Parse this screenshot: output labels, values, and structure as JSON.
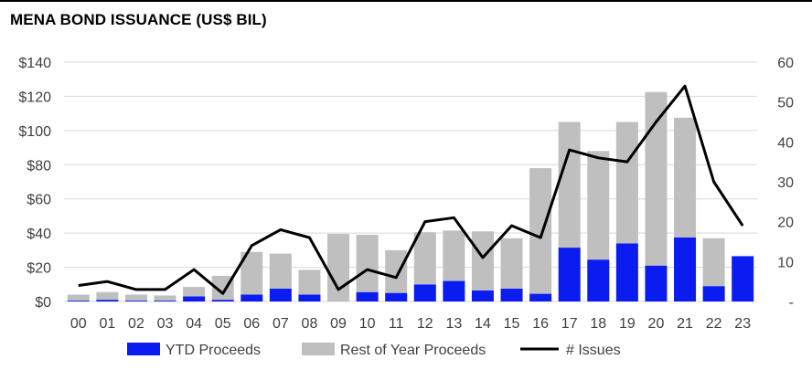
{
  "title": "MENA BOND ISSUANCE (US$ BIL)",
  "chart_data": {
    "type": "bar",
    "stacked": true,
    "categories": [
      "00",
      "01",
      "02",
      "03",
      "04",
      "05",
      "06",
      "07",
      "08",
      "09",
      "10",
      "11",
      "12",
      "13",
      "14",
      "15",
      "16",
      "17",
      "18",
      "19",
      "20",
      "21",
      "22",
      "23"
    ],
    "series": [
      {
        "name": "YTD Proceeds",
        "kind": "bar",
        "axis": "left",
        "color": "#0a1cf0",
        "values": [
          0.5,
          1,
          0.5,
          0.5,
          3,
          1,
          4,
          7.5,
          4,
          0,
          5.5,
          5,
          10,
          12,
          6.5,
          7.5,
          4.5,
          31.5,
          24.5,
          34,
          21,
          37.5,
          9,
          26.5
        ]
      },
      {
        "name": "Rest of Year Proceeds",
        "kind": "bar",
        "axis": "left",
        "color": "#bfbfbf",
        "values": [
          3.5,
          4.5,
          3.5,
          3,
          5.5,
          14,
          25,
          20.5,
          14.5,
          39.5,
          33.5,
          25,
          30.5,
          29.5,
          34.5,
          29.5,
          73.5,
          73.5,
          63.5,
          71,
          101.5,
          70,
          28,
          0
        ]
      },
      {
        "name": "# Issues",
        "kind": "line",
        "axis": "right",
        "color": "#000000",
        "values": [
          4,
          5,
          3,
          3,
          8,
          2,
          14,
          18,
          16,
          3,
          8,
          6,
          20,
          21,
          11,
          19,
          16,
          38,
          36,
          35,
          45,
          54,
          30,
          19
        ]
      }
    ],
    "y_left": {
      "ticks": [
        "$0",
        "$20",
        "$40",
        "$60",
        "$80",
        "$100",
        "$120",
        "$140"
      ],
      "range": [
        0,
        140
      ]
    },
    "y_right": {
      "ticks": [
        "-",
        "10",
        "20",
        "30",
        "40",
        "50",
        "60"
      ],
      "range": [
        0,
        60
      ]
    },
    "grid": true,
    "legend_position": "bottom"
  }
}
